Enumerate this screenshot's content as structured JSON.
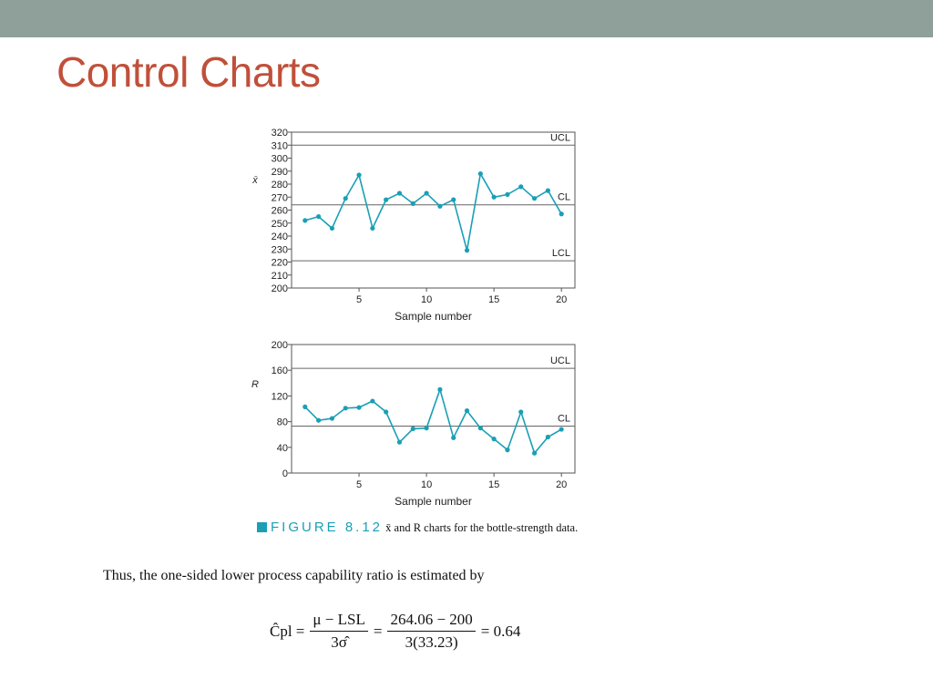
{
  "slide": {
    "title": "Control Charts"
  },
  "caption": {
    "figure_label": "FIGURE 8.12",
    "text": " x̄ and R charts for the bottle-strength data."
  },
  "body_text": "Thus, the one-sided lower process capability ratio is estimated by",
  "formula": {
    "lhs": "Ĉpl =",
    "num1": "μ − LSL",
    "den1": "3σ̂",
    "eq": "=",
    "num2": "264.06 − 200",
    "den2": "3(33.23)",
    "result": "= 0.64"
  },
  "colors": {
    "series": "#1a9fb5",
    "title": "#c0503a",
    "topbar": "#8fa09a"
  },
  "chart_data": [
    {
      "type": "line",
      "ylabel": "x̄",
      "xlabel": "Sample number",
      "ylim": [
        200,
        320
      ],
      "yticks": [
        200,
        210,
        220,
        230,
        240,
        250,
        260,
        270,
        280,
        290,
        300,
        310,
        320
      ],
      "xlim": [
        0,
        21
      ],
      "xticks": [
        5,
        10,
        15,
        20
      ],
      "grid": false,
      "reference_lines": [
        {
          "label": "UCL",
          "value": 310
        },
        {
          "label": "CL",
          "value": 264.06
        },
        {
          "label": "LCL",
          "value": 221
        }
      ],
      "x": [
        1,
        2,
        3,
        4,
        5,
        6,
        7,
        8,
        9,
        10,
        11,
        12,
        13,
        14,
        15,
        16,
        17,
        18,
        19,
        20
      ],
      "values": [
        252,
        255,
        246,
        269,
        287,
        246,
        268,
        273,
        265,
        273,
        263,
        268,
        229,
        288,
        270,
        272,
        278,
        269,
        275,
        257
      ]
    },
    {
      "type": "line",
      "ylabel": "R",
      "xlabel": "Sample number",
      "ylim": [
        0,
        200
      ],
      "yticks": [
        0,
        40,
        80,
        120,
        160,
        200
      ],
      "xlim": [
        0,
        21
      ],
      "xticks": [
        5,
        10,
        15,
        20
      ],
      "grid": false,
      "reference_lines": [
        {
          "label": "UCL",
          "value": 163
        },
        {
          "label": "CL",
          "value": 73
        }
      ],
      "x": [
        1,
        2,
        3,
        4,
        5,
        6,
        7,
        8,
        9,
        10,
        11,
        12,
        13,
        14,
        15,
        16,
        17,
        18,
        19,
        20
      ],
      "values": [
        103,
        82,
        85,
        101,
        102,
        112,
        95,
        48,
        69,
        70,
        130,
        55,
        97,
        70,
        53,
        36,
        95,
        31,
        56,
        68
      ]
    }
  ]
}
